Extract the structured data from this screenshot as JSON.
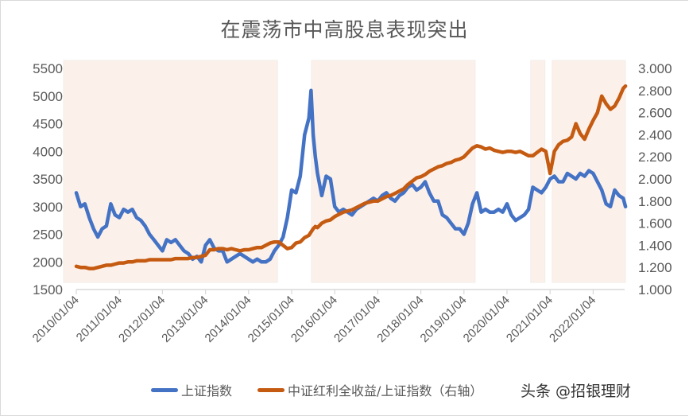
{
  "title": "在震荡市中高股息表现突出",
  "legend": {
    "items": [
      {
        "label": "上证指数",
        "color": "#4472C4"
      },
      {
        "label": "中证红利全收益/上证指数（右轴）",
        "color": "#C55A11"
      }
    ]
  },
  "watermark": "头条 @招银理财",
  "colors": {
    "series_left": "#4472C4",
    "series_right": "#C55A11",
    "shade": "#FCF1EA",
    "axis": "#D9D9D9",
    "text": "#595959"
  },
  "chart_data": {
    "type": "line",
    "title": "在震荡市中高股息表现突出",
    "xlabel": "",
    "ylabel": "",
    "ylabel_right": "",
    "ylim": [
      1500,
      5500
    ],
    "ylim_right": [
      1.0,
      3.0
    ],
    "yticks": [
      "1500",
      "2000",
      "2500",
      "3000",
      "3500",
      "4000",
      "4500",
      "5000",
      "5500"
    ],
    "yticks_right": [
      "1.000",
      "1.200",
      "1.400",
      "1.600",
      "1.800",
      "2.000",
      "2.200",
      "2.400",
      "2.600",
      "2.800",
      "3.000"
    ],
    "xticks": [
      "2010/01/04",
      "2011/01/04",
      "2012/01/04",
      "2013/01/04",
      "2014/01/04",
      "2015/01/04",
      "2016/01/04",
      "2017/01/04",
      "2018/01/04",
      "2019/01/04",
      "2020/01/04",
      "2021/01/04",
      "2022/01/04"
    ],
    "x_range": [
      2010.0,
      2022.75
    ],
    "grid": false,
    "legend_position": "bottom",
    "shaded_periods": [
      {
        "start": 2009.7,
        "end": 2014.67
      },
      {
        "start": 2015.46,
        "end": 2019.26
      },
      {
        "start": 2020.55,
        "end": 2020.88
      },
      {
        "start": 2021.05,
        "end": 2022.75
      }
    ],
    "x": [
      2010.0,
      2010.1,
      2010.2,
      2010.3,
      2010.4,
      2010.5,
      2010.6,
      2010.7,
      2010.8,
      2010.9,
      2011.0,
      2011.1,
      2011.2,
      2011.3,
      2011.4,
      2011.5,
      2011.6,
      2011.7,
      2011.8,
      2011.9,
      2012.0,
      2012.1,
      2012.2,
      2012.3,
      2012.4,
      2012.5,
      2012.6,
      2012.7,
      2012.8,
      2012.9,
      2013.0,
      2013.1,
      2013.2,
      2013.3,
      2013.4,
      2013.5,
      2013.6,
      2013.7,
      2013.8,
      2013.9,
      2014.0,
      2014.1,
      2014.2,
      2014.3,
      2014.4,
      2014.5,
      2014.6,
      2014.7,
      2014.8,
      2014.9,
      2015.0,
      2015.1,
      2015.2,
      2015.3,
      2015.4,
      2015.45,
      2015.5,
      2015.55,
      2015.6,
      2015.7,
      2015.8,
      2015.9,
      2016.0,
      2016.1,
      2016.2,
      2016.3,
      2016.4,
      2016.5,
      2016.6,
      2016.7,
      2016.8,
      2016.9,
      2017.0,
      2017.1,
      2017.2,
      2017.3,
      2017.4,
      2017.5,
      2017.6,
      2017.7,
      2017.8,
      2017.9,
      2018.0,
      2018.1,
      2018.2,
      2018.3,
      2018.4,
      2018.5,
      2018.6,
      2018.7,
      2018.8,
      2018.9,
      2019.0,
      2019.1,
      2019.2,
      2019.3,
      2019.4,
      2019.5,
      2019.6,
      2019.7,
      2019.8,
      2019.9,
      2020.0,
      2020.1,
      2020.2,
      2020.3,
      2020.4,
      2020.5,
      2020.6,
      2020.7,
      2020.8,
      2020.9,
      2021.0,
      2021.1,
      2021.2,
      2021.3,
      2021.4,
      2021.5,
      2021.6,
      2021.7,
      2021.8,
      2021.9,
      2022.0,
      2022.1,
      2022.2,
      2022.3,
      2022.4,
      2022.5,
      2022.6,
      2022.7,
      2022.75
    ],
    "series": [
      {
        "name": "上证指数",
        "axis": "left",
        "values": [
          3250,
          3000,
          3050,
          2800,
          2600,
          2450,
          2600,
          2650,
          3050,
          2850,
          2800,
          2950,
          2900,
          2950,
          2800,
          2750,
          2650,
          2500,
          2400,
          2300,
          2200,
          2400,
          2350,
          2400,
          2300,
          2200,
          2150,
          2050,
          2100,
          2000,
          2300,
          2400,
          2250,
          2200,
          2200,
          2000,
          2050,
          2100,
          2150,
          2100,
          2050,
          2000,
          2050,
          2000,
          2000,
          2050,
          2200,
          2300,
          2450,
          2800,
          3300,
          3250,
          3550,
          4300,
          4600,
          5100,
          4300,
          3900,
          3600,
          3200,
          3550,
          3500,
          3000,
          2900,
          2950,
          2900,
          2850,
          2950,
          3000,
          3050,
          3100,
          3150,
          3100,
          3200,
          3250,
          3150,
          3100,
          3200,
          3250,
          3350,
          3400,
          3300,
          3350,
          3450,
          3250,
          3100,
          3100,
          2850,
          2800,
          2700,
          2600,
          2600,
          2500,
          2700,
          3050,
          3250,
          2900,
          2950,
          2900,
          2900,
          2950,
          2900,
          3050,
          2850,
          2750,
          2800,
          2850,
          2950,
          3350,
          3300,
          3250,
          3350,
          3500,
          3550,
          3450,
          3450,
          3600,
          3550,
          3500,
          3600,
          3550,
          3650,
          3600,
          3450,
          3300,
          3050,
          3000,
          3300,
          3200,
          3150,
          3000
        ]
      },
      {
        "name": "中证红利全收益/上证指数（右轴）",
        "axis": "right",
        "values": [
          1.21,
          1.2,
          1.2,
          1.19,
          1.19,
          1.2,
          1.21,
          1.22,
          1.22,
          1.23,
          1.24,
          1.24,
          1.25,
          1.25,
          1.26,
          1.26,
          1.26,
          1.27,
          1.27,
          1.27,
          1.27,
          1.27,
          1.27,
          1.28,
          1.28,
          1.28,
          1.28,
          1.29,
          1.29,
          1.3,
          1.31,
          1.36,
          1.36,
          1.37,
          1.37,
          1.36,
          1.37,
          1.36,
          1.35,
          1.36,
          1.36,
          1.37,
          1.38,
          1.38,
          1.4,
          1.42,
          1.43,
          1.43,
          1.4,
          1.37,
          1.38,
          1.42,
          1.43,
          1.47,
          1.49,
          1.52,
          1.55,
          1.57,
          1.56,
          1.6,
          1.62,
          1.63,
          1.66,
          1.68,
          1.7,
          1.71,
          1.72,
          1.74,
          1.76,
          1.78,
          1.79,
          1.8,
          1.8,
          1.82,
          1.84,
          1.85,
          1.87,
          1.89,
          1.91,
          1.95,
          1.98,
          2.01,
          2.02,
          2.04,
          2.07,
          2.09,
          2.11,
          2.12,
          2.14,
          2.15,
          2.17,
          2.18,
          2.2,
          2.24,
          2.28,
          2.3,
          2.29,
          2.27,
          2.28,
          2.26,
          2.25,
          2.24,
          2.25,
          2.25,
          2.24,
          2.25,
          2.23,
          2.21,
          2.21,
          2.24,
          2.27,
          2.25,
          2.05,
          2.25,
          2.31,
          2.34,
          2.35,
          2.38,
          2.5,
          2.41,
          2.36,
          2.45,
          2.53,
          2.6,
          2.75,
          2.68,
          2.63,
          2.66,
          2.73,
          2.82,
          2.84
        ]
      }
    ]
  }
}
